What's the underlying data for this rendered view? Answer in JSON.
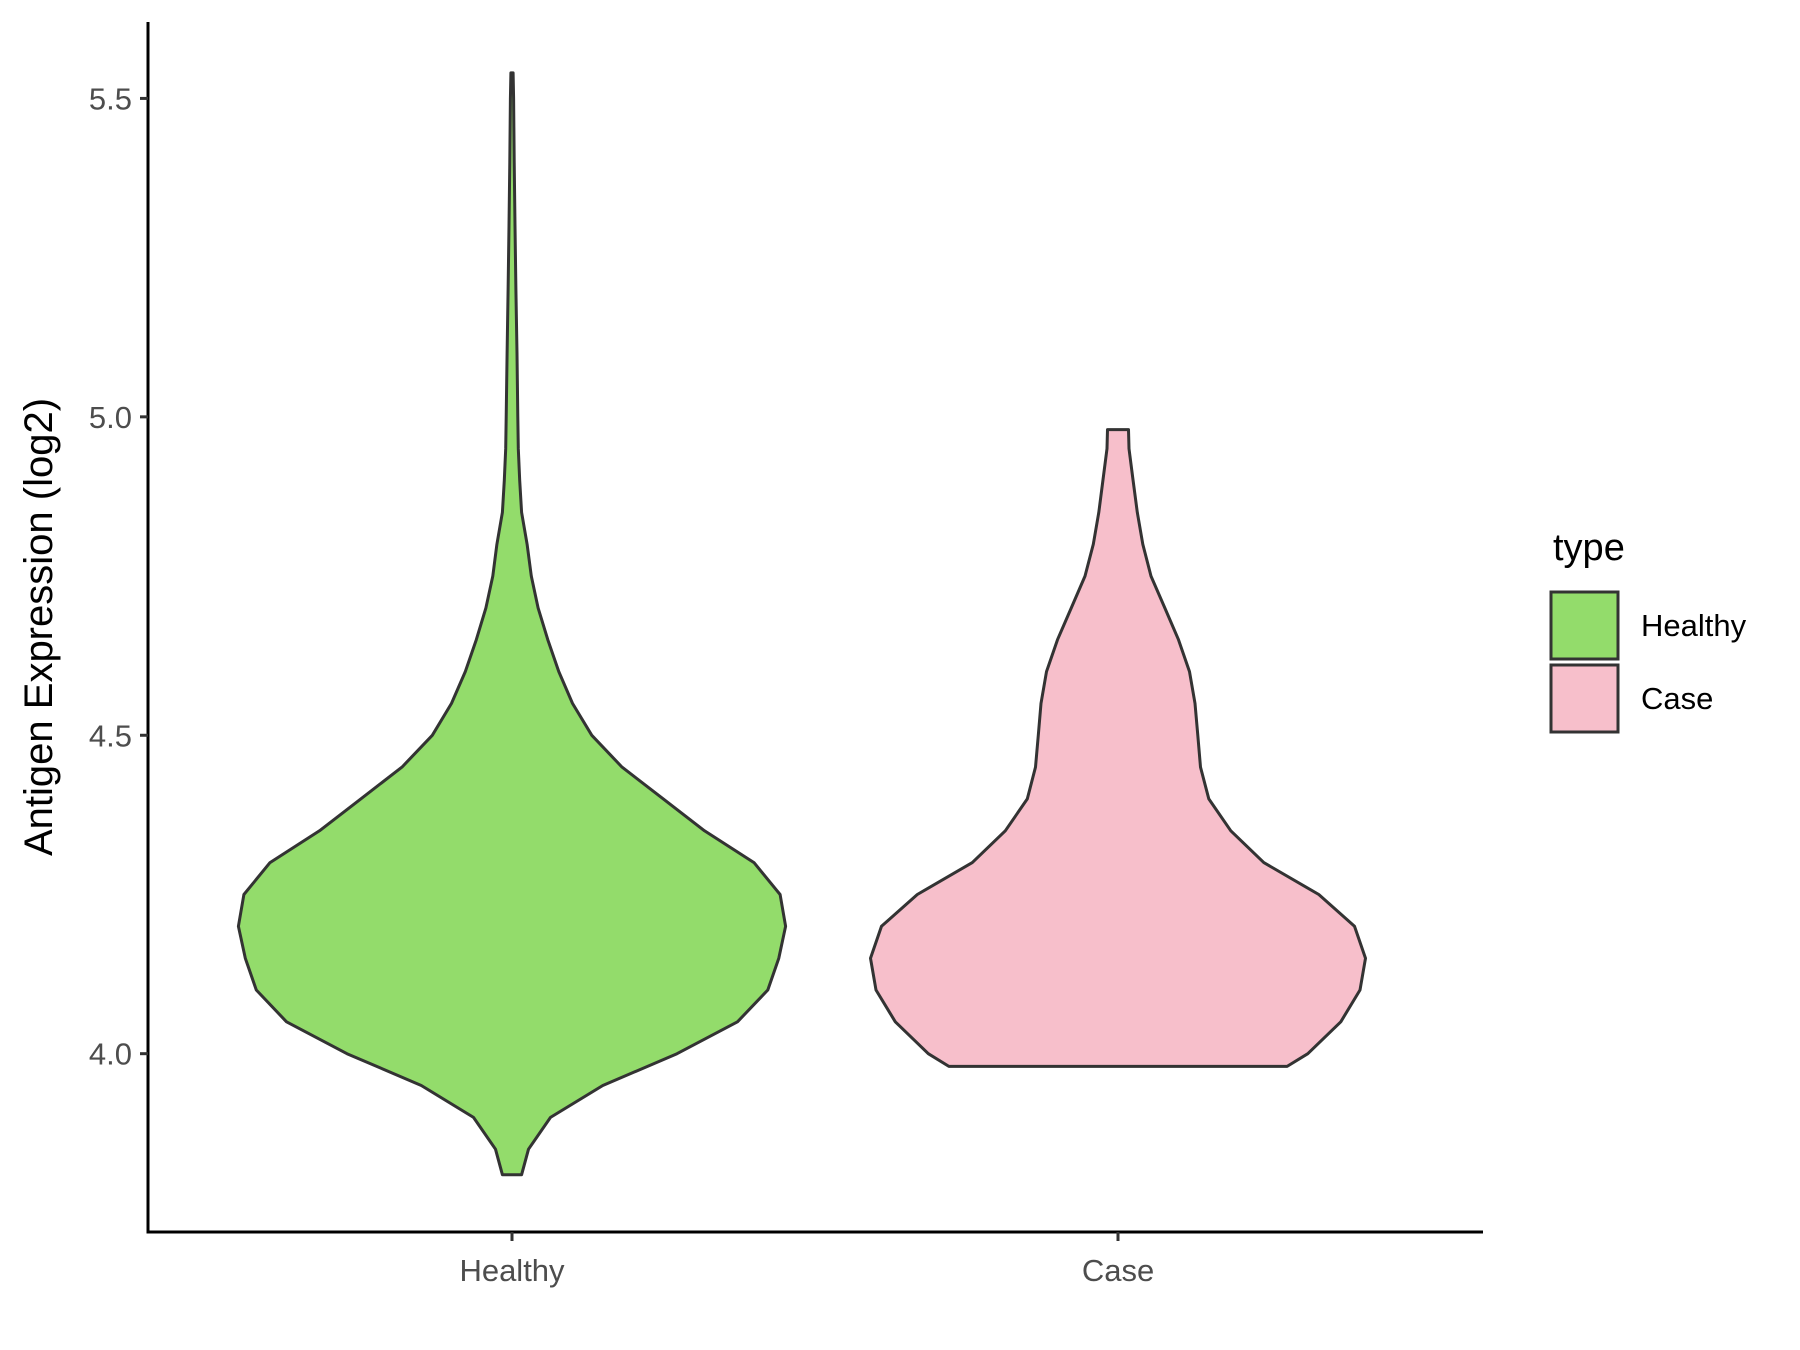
{
  "chart_data": {
    "type": "violin",
    "categories": [
      "Healthy",
      "Case"
    ],
    "ylabel": "Antigen Expression (log2)",
    "xlabel": "",
    "ylim": [
      3.72,
      5.62
    ],
    "yticks": [
      "4.0",
      "4.5",
      "5.0",
      "5.5"
    ],
    "grid": false,
    "legend": {
      "title": "type",
      "position": "right",
      "entries": [
        {
          "label": "Healthy",
          "color": "#93dc6b"
        },
        {
          "label": "Case",
          "color": "#f7bfcb"
        }
      ]
    },
    "series": [
      {
        "name": "Healthy",
        "color": "#93dc6b",
        "y_min": 3.81,
        "y_max": 5.54,
        "profile": [
          [
            3.81,
            0.035
          ],
          [
            3.85,
            0.06
          ],
          [
            3.9,
            0.14
          ],
          [
            3.95,
            0.33
          ],
          [
            4.0,
            0.6
          ],
          [
            4.05,
            0.82
          ],
          [
            4.1,
            0.93
          ],
          [
            4.15,
            0.97
          ],
          [
            4.2,
            0.995
          ],
          [
            4.25,
            0.975
          ],
          [
            4.3,
            0.88
          ],
          [
            4.35,
            0.7
          ],
          [
            4.4,
            0.55
          ],
          [
            4.45,
            0.4
          ],
          [
            4.5,
            0.29
          ],
          [
            4.55,
            0.22
          ],
          [
            4.6,
            0.17
          ],
          [
            4.65,
            0.13
          ],
          [
            4.7,
            0.095
          ],
          [
            4.75,
            0.07
          ],
          [
            4.8,
            0.055
          ],
          [
            4.85,
            0.035
          ],
          [
            4.9,
            0.028
          ],
          [
            4.95,
            0.023
          ],
          [
            5.0,
            0.021
          ],
          [
            5.1,
            0.018
          ],
          [
            5.2,
            0.014
          ],
          [
            5.3,
            0.011
          ],
          [
            5.4,
            0.008
          ],
          [
            5.5,
            0.006
          ],
          [
            5.54,
            0.004
          ]
        ]
      },
      {
        "name": "Case",
        "color": "#f7bfcb",
        "y_min": 3.98,
        "y_max": 4.98,
        "profile": [
          [
            3.98,
            0.615
          ],
          [
            4.0,
            0.69
          ],
          [
            4.05,
            0.81
          ],
          [
            4.1,
            0.88
          ],
          [
            4.15,
            0.9
          ],
          [
            4.2,
            0.86
          ],
          [
            4.25,
            0.73
          ],
          [
            4.3,
            0.53
          ],
          [
            4.35,
            0.41
          ],
          [
            4.4,
            0.33
          ],
          [
            4.45,
            0.3
          ],
          [
            4.5,
            0.29
          ],
          [
            4.55,
            0.28
          ],
          [
            4.6,
            0.26
          ],
          [
            4.65,
            0.22
          ],
          [
            4.7,
            0.17
          ],
          [
            4.75,
            0.12
          ],
          [
            4.8,
            0.09
          ],
          [
            4.85,
            0.07
          ],
          [
            4.9,
            0.055
          ],
          [
            4.95,
            0.04
          ],
          [
            4.98,
            0.038
          ]
        ]
      }
    ]
  }
}
